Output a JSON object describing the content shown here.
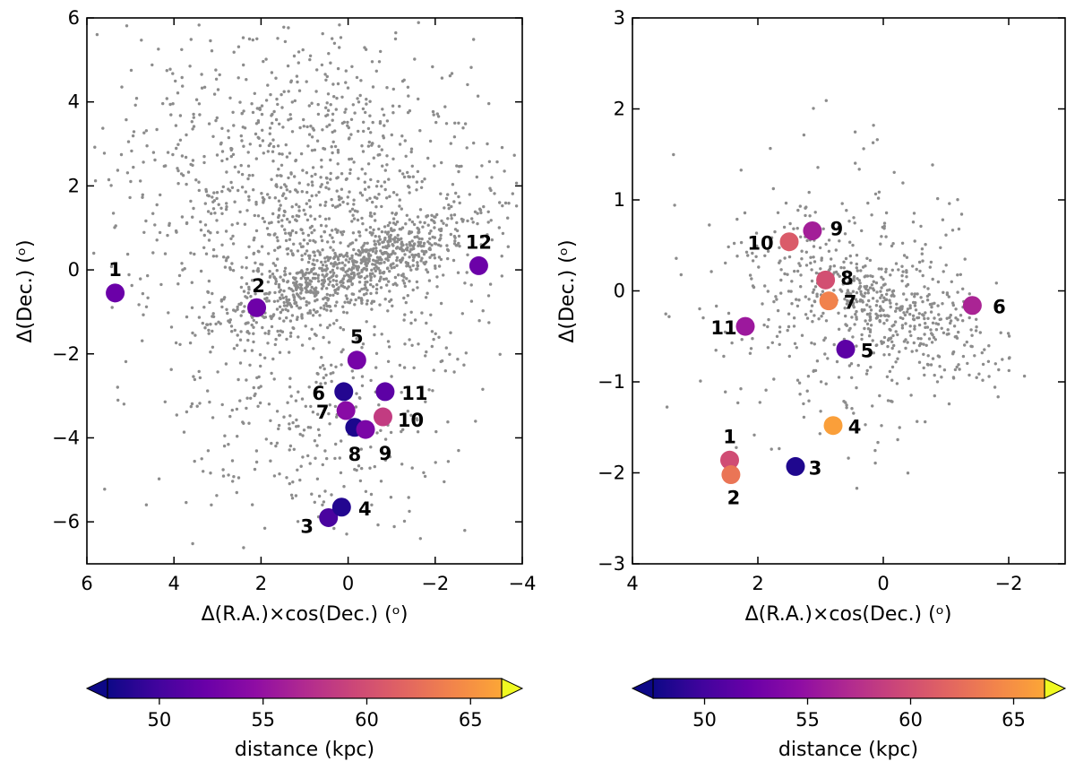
{
  "chart_data": [
    {
      "type": "scatter",
      "name": "left",
      "xlabel": "Δ(R.A.)×cos(Dec.) (ᵒ)",
      "ylabel": "Δ(Dec.) (ᵒ)",
      "xlim": [
        6,
        -4
      ],
      "ylim": [
        -7,
        6
      ],
      "xticks": [
        6,
        4,
        2,
        0,
        -2,
        -4
      ],
      "yticks": [
        -6,
        -4,
        -2,
        0,
        2,
        4,
        6
      ],
      "xtick_labels": [
        "6",
        "4",
        "2",
        "0",
        "−2",
        "−4"
      ],
      "ytick_labels": [
        "−6",
        "−4",
        "−2",
        "0",
        "2",
        "4",
        "6"
      ],
      "points": [
        {
          "label": "1",
          "x": 5.35,
          "y": -0.55,
          "distance": 52.3
        },
        {
          "label": "2",
          "x": 2.1,
          "y": -0.9,
          "distance": 52.5
        },
        {
          "label": "3",
          "x": 0.45,
          "y": -5.9,
          "distance": 50.4
        },
        {
          "label": "4",
          "x": 0.15,
          "y": -5.65,
          "distance": 48.5
        },
        {
          "label": "5",
          "x": -0.2,
          "y": -2.15,
          "distance": 53.0
        },
        {
          "label": "6",
          "x": 0.1,
          "y": -2.9,
          "distance": 48.5
        },
        {
          "label": "7",
          "x": 0.05,
          "y": -3.35,
          "distance": 54.2
        },
        {
          "label": "8",
          "x": -0.15,
          "y": -3.75,
          "distance": 48.2
        },
        {
          "label": "9",
          "x": -0.4,
          "y": -3.8,
          "distance": 53.3
        },
        {
          "label": "10",
          "x": -0.8,
          "y": -3.5,
          "distance": 58.5
        },
        {
          "label": "11",
          "x": -0.85,
          "y": -2.9,
          "distance": 51.5
        },
        {
          "label": "12",
          "x": -3.0,
          "y": 0.1,
          "distance": 52.4
        }
      ]
    },
    {
      "type": "scatter",
      "name": "right",
      "xlabel": "Δ(R.A.)×cos(Dec.) (ᵒ)",
      "ylabel": "Δ(Dec.) (ᵒ)",
      "xlim": [
        4,
        -2.9
      ],
      "ylim": [
        -3,
        3
      ],
      "xticks": [
        4,
        2,
        0,
        -2
      ],
      "yticks": [
        -3,
        -2,
        -1,
        0,
        1,
        2,
        3
      ],
      "xtick_labels": [
        "4",
        "2",
        "0",
        "−2"
      ],
      "ytick_labels": [
        "−3",
        "−2",
        "−1",
        "0",
        "1",
        "2",
        "3"
      ],
      "points": [
        {
          "label": "1",
          "x": 2.45,
          "y": -1.86,
          "distance": 59.8
        },
        {
          "label": "2",
          "x": 2.43,
          "y": -2.02,
          "distance": 63.0
        },
        {
          "label": "3",
          "x": 1.4,
          "y": -1.93,
          "distance": 48.3
        },
        {
          "label": "4",
          "x": 0.8,
          "y": -1.48,
          "distance": 66.0
        },
        {
          "label": "5",
          "x": 0.6,
          "y": -0.64,
          "distance": 51.5
        },
        {
          "label": "6",
          "x": -1.42,
          "y": -0.16,
          "distance": 56.5
        },
        {
          "label": "7",
          "x": 0.87,
          "y": -0.11,
          "distance": 64.0
        },
        {
          "label": "8",
          "x": 0.92,
          "y": 0.12,
          "distance": 60.0
        },
        {
          "label": "9",
          "x": 1.13,
          "y": 0.66,
          "distance": 56.0
        },
        {
          "label": "10",
          "x": 1.5,
          "y": 0.54,
          "distance": 61.0
        },
        {
          "label": "11",
          "x": 2.2,
          "y": -0.39,
          "distance": 55.5
        }
      ]
    }
  ],
  "colorbars": [
    {
      "label": "distance (kpc)",
      "range": [
        47.5,
        66.5
      ],
      "ticks": [
        50,
        55,
        60,
        65
      ],
      "tick_labels": [
        "50",
        "55",
        "60",
        "65"
      ]
    },
    {
      "label": "distance (kpc)",
      "range": [
        47.5,
        66.5
      ],
      "ticks": [
        50,
        55,
        60,
        65
      ],
      "tick_labels": [
        "50",
        "55",
        "60",
        "65"
      ]
    }
  ],
  "colormap": "plasma",
  "colors": {
    "background_points": "#8c8c8c",
    "axes": "#000000"
  }
}
